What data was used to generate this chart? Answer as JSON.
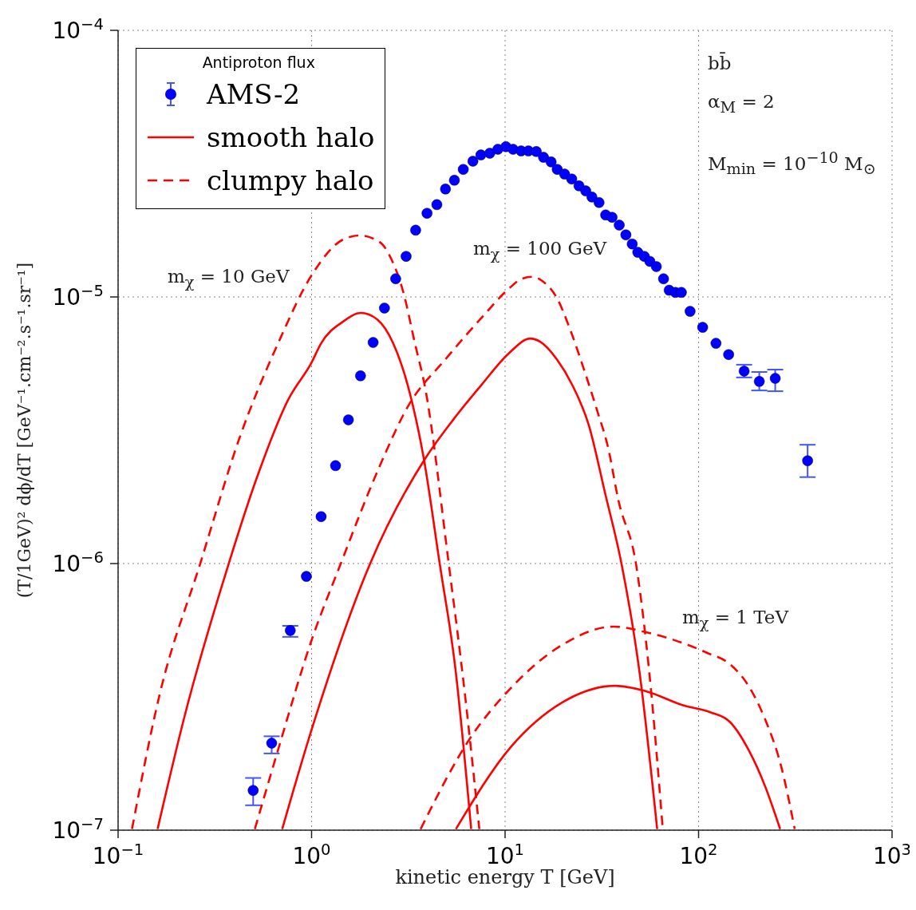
{
  "chart_data": {
    "type": "line",
    "xlabel": "kinetic energy T [GeV]",
    "ylabel": "(T/1GeV)² dϕ/dT [GeV⁻¹.cm⁻².s⁻¹.sr⁻¹]",
    "legend_title": "Antiproton flux",
    "legend": "top left",
    "grid": true,
    "log": "xy",
    "xlim": [
      0.1,
      1000
    ],
    "ylim": [
      1e-07,
      0.0001
    ],
    "xticks": [
      {
        "value": 0.1,
        "label": "10$^{−1}$"
      },
      {
        "value": 1,
        "label": "10$^{0}$"
      },
      {
        "value": 10,
        "label": "10$^{1}$"
      },
      {
        "value": 100,
        "label": "10$^{2}$"
      },
      {
        "value": 1000,
        "label": "10$^{3}$"
      }
    ],
    "yticks": [
      {
        "value": 1e-07,
        "label": "10$^{−7}$"
      },
      {
        "value": 1e-06,
        "label": "10$^{−6}$"
      },
      {
        "value": 1e-05,
        "label": "10$^{−5}$"
      },
      {
        "value": 0.0001,
        "label": "10$^{−4}$"
      }
    ],
    "annotations": [
      "m$_{χ}$ = 10 GeV",
      "m$_{χ}$ = 100 GeV",
      "m$_{χ}$ = 1 TeV",
      "bb̄",
      "α$_{M}$ = 2",
      "M$_{min}$ = 10$^{−10}$ M$_{⊙}$"
    ],
    "series": [
      {
        "name": "AMS-2",
        "type": "scatter",
        "marker": "circle",
        "color": "#0000ff",
        "x": [
          0.499,
          0.622,
          0.776,
          0.94,
          1.12,
          1.33,
          1.55,
          1.79,
          2.08,
          2.38,
          2.72,
          3.08,
          3.45,
          3.95,
          4.44,
          4.92,
          5.47,
          6.08,
          6.82,
          7.5,
          8.34,
          9.18,
          10.1,
          11.0,
          12.1,
          13.2,
          14.5,
          15.8,
          17.3,
          18.6,
          20.3,
          22.1,
          24.1,
          26.1,
          28.1,
          30.6,
          33.1,
          35.7,
          38.9,
          42.1,
          45.4,
          48.5,
          52.4,
          56.0,
          60.5,
          65.9,
          70.5,
          76.0,
          81.5,
          90.4,
          105,
          123,
          143,
          172,
          206,
          249,
          366
        ],
        "values": [
          1.41e-07,
          2.12e-07,
          5.61e-07,
          8.95e-07,
          1.5e-06,
          2.33e-06,
          3.46e-06,
          5.06e-06,
          6.75e-06,
          9.08e-06,
          1.17e-05,
          1.42e-05,
          1.78e-05,
          2.06e-05,
          2.22e-05,
          2.54e-05,
          2.74e-05,
          3.01e-05,
          3.23e-05,
          3.41e-05,
          3.46e-05,
          3.58e-05,
          3.66e-05,
          3.58e-05,
          3.53e-05,
          3.53e-05,
          3.51e-05,
          3.34e-05,
          3.21e-05,
          3.01e-05,
          2.89e-05,
          2.77e-05,
          2.61e-05,
          2.5e-05,
          2.37e-05,
          2.26e-05,
          2.03e-05,
          1.99e-05,
          1.86e-05,
          1.71e-05,
          1.58e-05,
          1.47e-05,
          1.42e-05,
          1.36e-05,
          1.3e-05,
          1.17e-05,
          1.06e-05,
          1.04e-05,
          1.04e-05,
          8.83e-06,
          7.69e-06,
          6.7e-06,
          6.08e-06,
          5.27e-06,
          4.82e-06,
          4.95e-06,
          2.43e-06
        ],
        "errors": [
          [
            1.24e-07,
            1.57e-07
          ],
          [
            1.94e-07,
            2.25e-07
          ],
          [
            5.31e-07,
            5.84e-07
          ],
          null,
          null,
          null,
          null,
          null,
          null,
          null,
          null,
          null,
          null,
          null,
          null,
          null,
          null,
          null,
          null,
          null,
          null,
          null,
          null,
          null,
          null,
          null,
          null,
          null,
          null,
          null,
          null,
          null,
          null,
          null,
          null,
          null,
          null,
          null,
          null,
          null,
          null,
          null,
          null,
          null,
          null,
          null,
          null,
          null,
          null,
          null,
          null,
          null,
          null,
          [
            4.99e-06,
            5.57e-06
          ],
          [
            4.46e-06,
            5.23e-06
          ],
          [
            4.43e-06,
            5.34e-06
          ],
          [
            2.11e-06,
            2.79e-06
          ]
        ]
      },
      {
        "name": "smooth halo",
        "color": "#ff0000",
        "line_style": "solid",
        "x": [
          0.16,
          0.219,
          0.372,
          0.519,
          0.76,
          1.0,
          1.12,
          1.45,
          1.8,
          2.18,
          2.64,
          3.2,
          3.8,
          4.6,
          5.52,
          6.68
        ],
        "values": [
          1.01e-07,
          2.62e-07,
          9.93e-07,
          2.08e-06,
          4.14e-06,
          5.68e-06,
          6.7e-06,
          8.07e-06,
          8.71e-06,
          8.24e-06,
          6.7e-06,
          4.43e-06,
          2.48e-06,
          9.93e-07,
          4.11e-07,
          1.01e-07
        ]
      },
      {
        "name": "clumpy halo",
        "color": "#ff0000",
        "line_style": "dashed",
        "x": [
          0.118,
          0.164,
          0.265,
          0.429,
          0.671,
          1.01,
          1.45,
          1.77,
          2.24,
          2.64,
          2.96,
          3.42,
          3.87,
          5.12,
          6.25,
          7.36
        ],
        "values": [
          1.01e-07,
          3.23e-07,
          9.93e-07,
          3.03e-06,
          6.7e-06,
          1.22e-05,
          1.64e-05,
          1.7e-05,
          1.61e-05,
          1.34e-05,
          1.06e-05,
          6.7e-06,
          4.53e-06,
          9.93e-07,
          3.08e-07,
          1.01e-07
        ]
      },
      {
        "color": "#ff0000",
        "line_style": "solid",
        "x": [
          0.705,
          1.0,
          2.0,
          3.87,
          5.42,
          7.57,
          10.4,
          13.5,
          15.2,
          18.5,
          22.3,
          27.1,
          32.8,
          40.1,
          49.4,
          61.1
        ],
        "values": [
          1.01e-07,
          2.38e-07,
          9.93e-07,
          2.48e-06,
          3.48e-06,
          4.69e-06,
          6.12e-06,
          6.98e-06,
          6.79e-06,
          5.84e-06,
          4.66e-06,
          3.3e-06,
          1.85e-06,
          9.86e-07,
          3.97e-07,
          1.01e-07
        ]
      },
      {
        "color": "#ff0000",
        "line_style": "dashed",
        "x": [
          0.509,
          0.671,
          1.0,
          1.41,
          2.22,
          3.17,
          4.92,
          7.57,
          10.4,
          12.2,
          13.8,
          16.0,
          18.5,
          21.7,
          25.5,
          29.8,
          34.0,
          38.5,
          47.6,
          55.5,
          65.3
        ],
        "values": [
          1.01e-07,
          2e-07,
          5.16e-07,
          9.93e-07,
          2.27e-06,
          3.92e-06,
          5.84e-06,
          8.36e-06,
          1.07e-05,
          1.17e-05,
          1.19e-05,
          1.13e-05,
          9.93e-06,
          7.54e-06,
          5.38e-06,
          3.78e-06,
          2.74e-06,
          1.73e-06,
          9.86e-07,
          3.97e-07,
          1.01e-07
        ]
      },
      {
        "color": "#ff0000",
        "line_style": "solid",
        "x": [
          5.57,
          10.7,
          19.7,
          37.2,
          53.5,
          84.5,
          115,
          145,
          182,
          220,
          264
        ],
        "values": [
          1.01e-07,
          2.05e-07,
          3.01e-07,
          3.48e-07,
          3.32e-07,
          2.93e-07,
          2.77e-07,
          2.55e-07,
          1.99e-07,
          1.47e-07,
          1.01e-07
        ]
      },
      {
        "color": "#ff0000",
        "line_style": "dashed",
        "x": [
          3.66,
          6.62,
          10.7,
          19.7,
          36.4,
          53.5,
          111,
          145,
          182,
          220,
          267,
          314
        ],
        "values": [
          1.01e-07,
          2.22e-07,
          3.41e-07,
          4.95e-07,
          5.8e-07,
          5.53e-07,
          4.62e-07,
          4.2e-07,
          3.46e-07,
          2.62e-07,
          1.74e-07,
          1.01e-07
        ]
      }
    ]
  }
}
